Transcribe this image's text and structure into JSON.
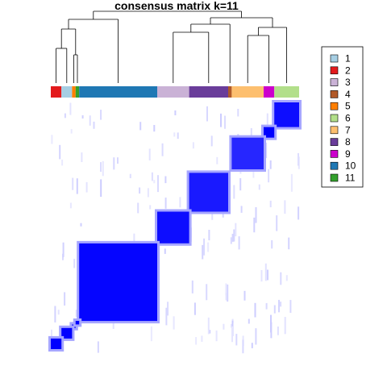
{
  "chart_data": {
    "type": "heatmap",
    "title": "consensus matrix k=11",
    "value_range": [
      0,
      1
    ],
    "color_low": "#FFFFFF",
    "color_high": "#0000FF",
    "legend": {
      "placement": "right",
      "entries": [
        {
          "label": "1",
          "color": "#A6CEE3"
        },
        {
          "label": "2",
          "color": "#E31A1C"
        },
        {
          "label": "3",
          "color": "#CAB2D6"
        },
        {
          "label": "4",
          "color": "#B15928"
        },
        {
          "label": "5",
          "color": "#FF7F00"
        },
        {
          "label": "6",
          "color": "#B2DF8A"
        },
        {
          "label": "7",
          "color": "#FDBF6F"
        },
        {
          "label": "8",
          "color": "#6A3D9A"
        },
        {
          "label": "9",
          "color": "#CC00CC"
        },
        {
          "label": "10",
          "color": "#1F78B4"
        },
        {
          "label": "11",
          "color": "#33A02C"
        }
      ]
    },
    "column_class_bar": [
      {
        "class": "2",
        "span": 3
      },
      {
        "class": "1",
        "span": 3
      },
      {
        "class": "5",
        "span": 1
      },
      {
        "class": "11",
        "span": 1
      },
      {
        "class": "10",
        "span": 22
      },
      {
        "class": "3",
        "span": 9
      },
      {
        "class": "8",
        "span": 11
      },
      {
        "class": "4",
        "span": 1
      },
      {
        "class": "7",
        "span": 9
      },
      {
        "class": "9",
        "span": 3
      },
      {
        "class": "6",
        "span": 7
      }
    ],
    "blocks": [
      {
        "class": "6",
        "consensus": 0.95
      },
      {
        "class": "9",
        "consensus": 1.0
      },
      {
        "class": "7",
        "consensus": 0.85
      },
      {
        "class": "8",
        "consensus": 0.9
      },
      {
        "class": "3",
        "consensus": 0.95
      },
      {
        "class": "10",
        "consensus": 0.98
      },
      {
        "class": "5",
        "consensus": 1.0
      },
      {
        "class": "11",
        "consensus": 1.0
      },
      {
        "class": "1",
        "consensus": 1.0
      },
      {
        "class": "2",
        "consensus": 1.0
      }
    ]
  }
}
